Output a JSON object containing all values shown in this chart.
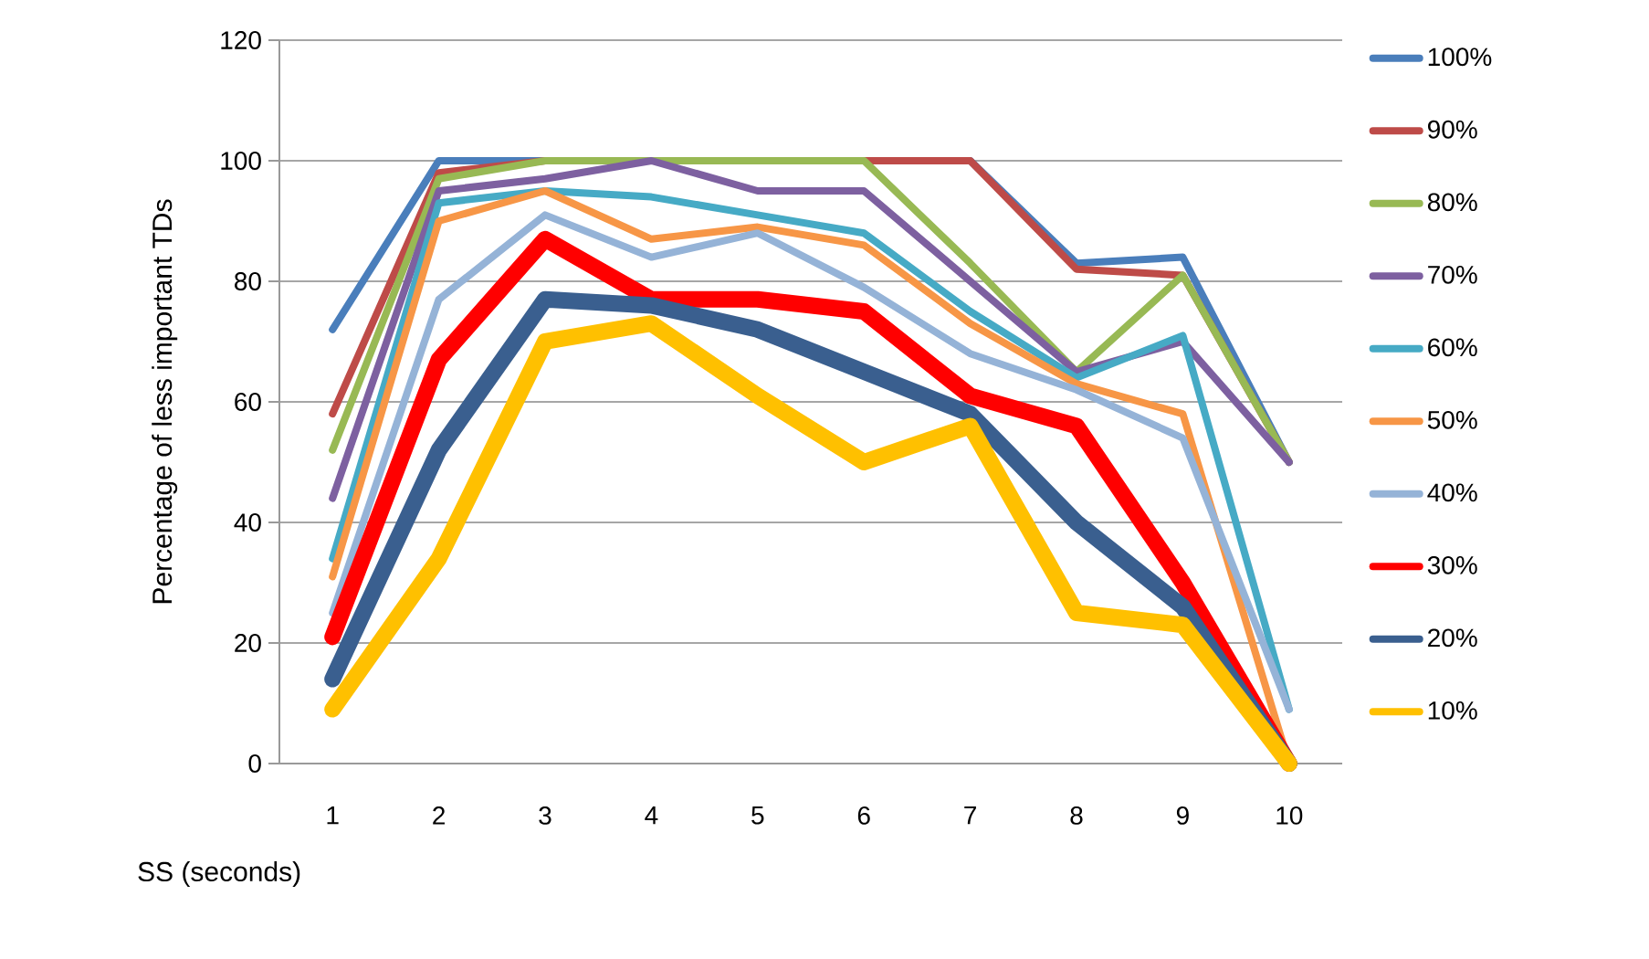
{
  "chart_data": {
    "type": "line",
    "xlabel": "SS (seconds)",
    "ylabel": "Percentage of less important TDs",
    "categories": [
      "1",
      "2",
      "3",
      "4",
      "5",
      "6",
      "7",
      "8",
      "9",
      "10"
    ],
    "ylim": [
      0,
      120
    ],
    "yticks": [
      0,
      20,
      40,
      60,
      80,
      100,
      120
    ],
    "grid": "y",
    "legend": "right",
    "line_style": "solid",
    "marker": "none",
    "series": [
      {
        "name": "100%",
        "color": "#4a7ebb",
        "values": [
          72,
          100,
          100,
          100,
          null,
          null,
          100,
          83,
          84,
          50
        ]
      },
      {
        "name": "90%",
        "color": "#be4b48",
        "values": [
          58,
          98,
          100,
          100,
          null,
          100,
          100,
          82,
          81,
          50
        ]
      },
      {
        "name": "80%",
        "color": "#98b954",
        "values": [
          52,
          97,
          100,
          100,
          100,
          100,
          83,
          65,
          81,
          50
        ]
      },
      {
        "name": "70%",
        "color": "#7d60a0",
        "values": [
          44,
          95,
          97,
          100,
          95,
          95,
          80,
          65,
          70,
          50
        ]
      },
      {
        "name": "60%",
        "color": "#46aac5",
        "values": [
          34,
          93,
          95,
          94,
          91,
          88,
          75,
          64,
          71,
          9
        ]
      },
      {
        "name": "50%",
        "color": "#f79646",
        "values": [
          31,
          90,
          95,
          87,
          89,
          86,
          73,
          63,
          58,
          0
        ]
      },
      {
        "name": "40%",
        "color": "#95b3d7",
        "values": [
          25,
          77,
          91,
          84,
          88,
          79,
          68,
          62,
          54,
          9
        ]
      },
      {
        "name": "30%",
        "color": "#ff0000",
        "values": [
          21,
          67,
          87,
          77,
          77,
          75,
          61,
          56,
          30,
          0
        ]
      },
      {
        "name": "20%",
        "color": "#3a5f8f",
        "values": [
          14,
          52,
          77,
          76,
          72,
          65,
          58,
          40,
          26,
          0
        ]
      },
      {
        "name": "10%",
        "color": "#ffc000",
        "values": [
          9,
          34,
          70,
          73,
          61,
          50,
          56,
          25,
          23,
          0
        ]
      }
    ]
  }
}
